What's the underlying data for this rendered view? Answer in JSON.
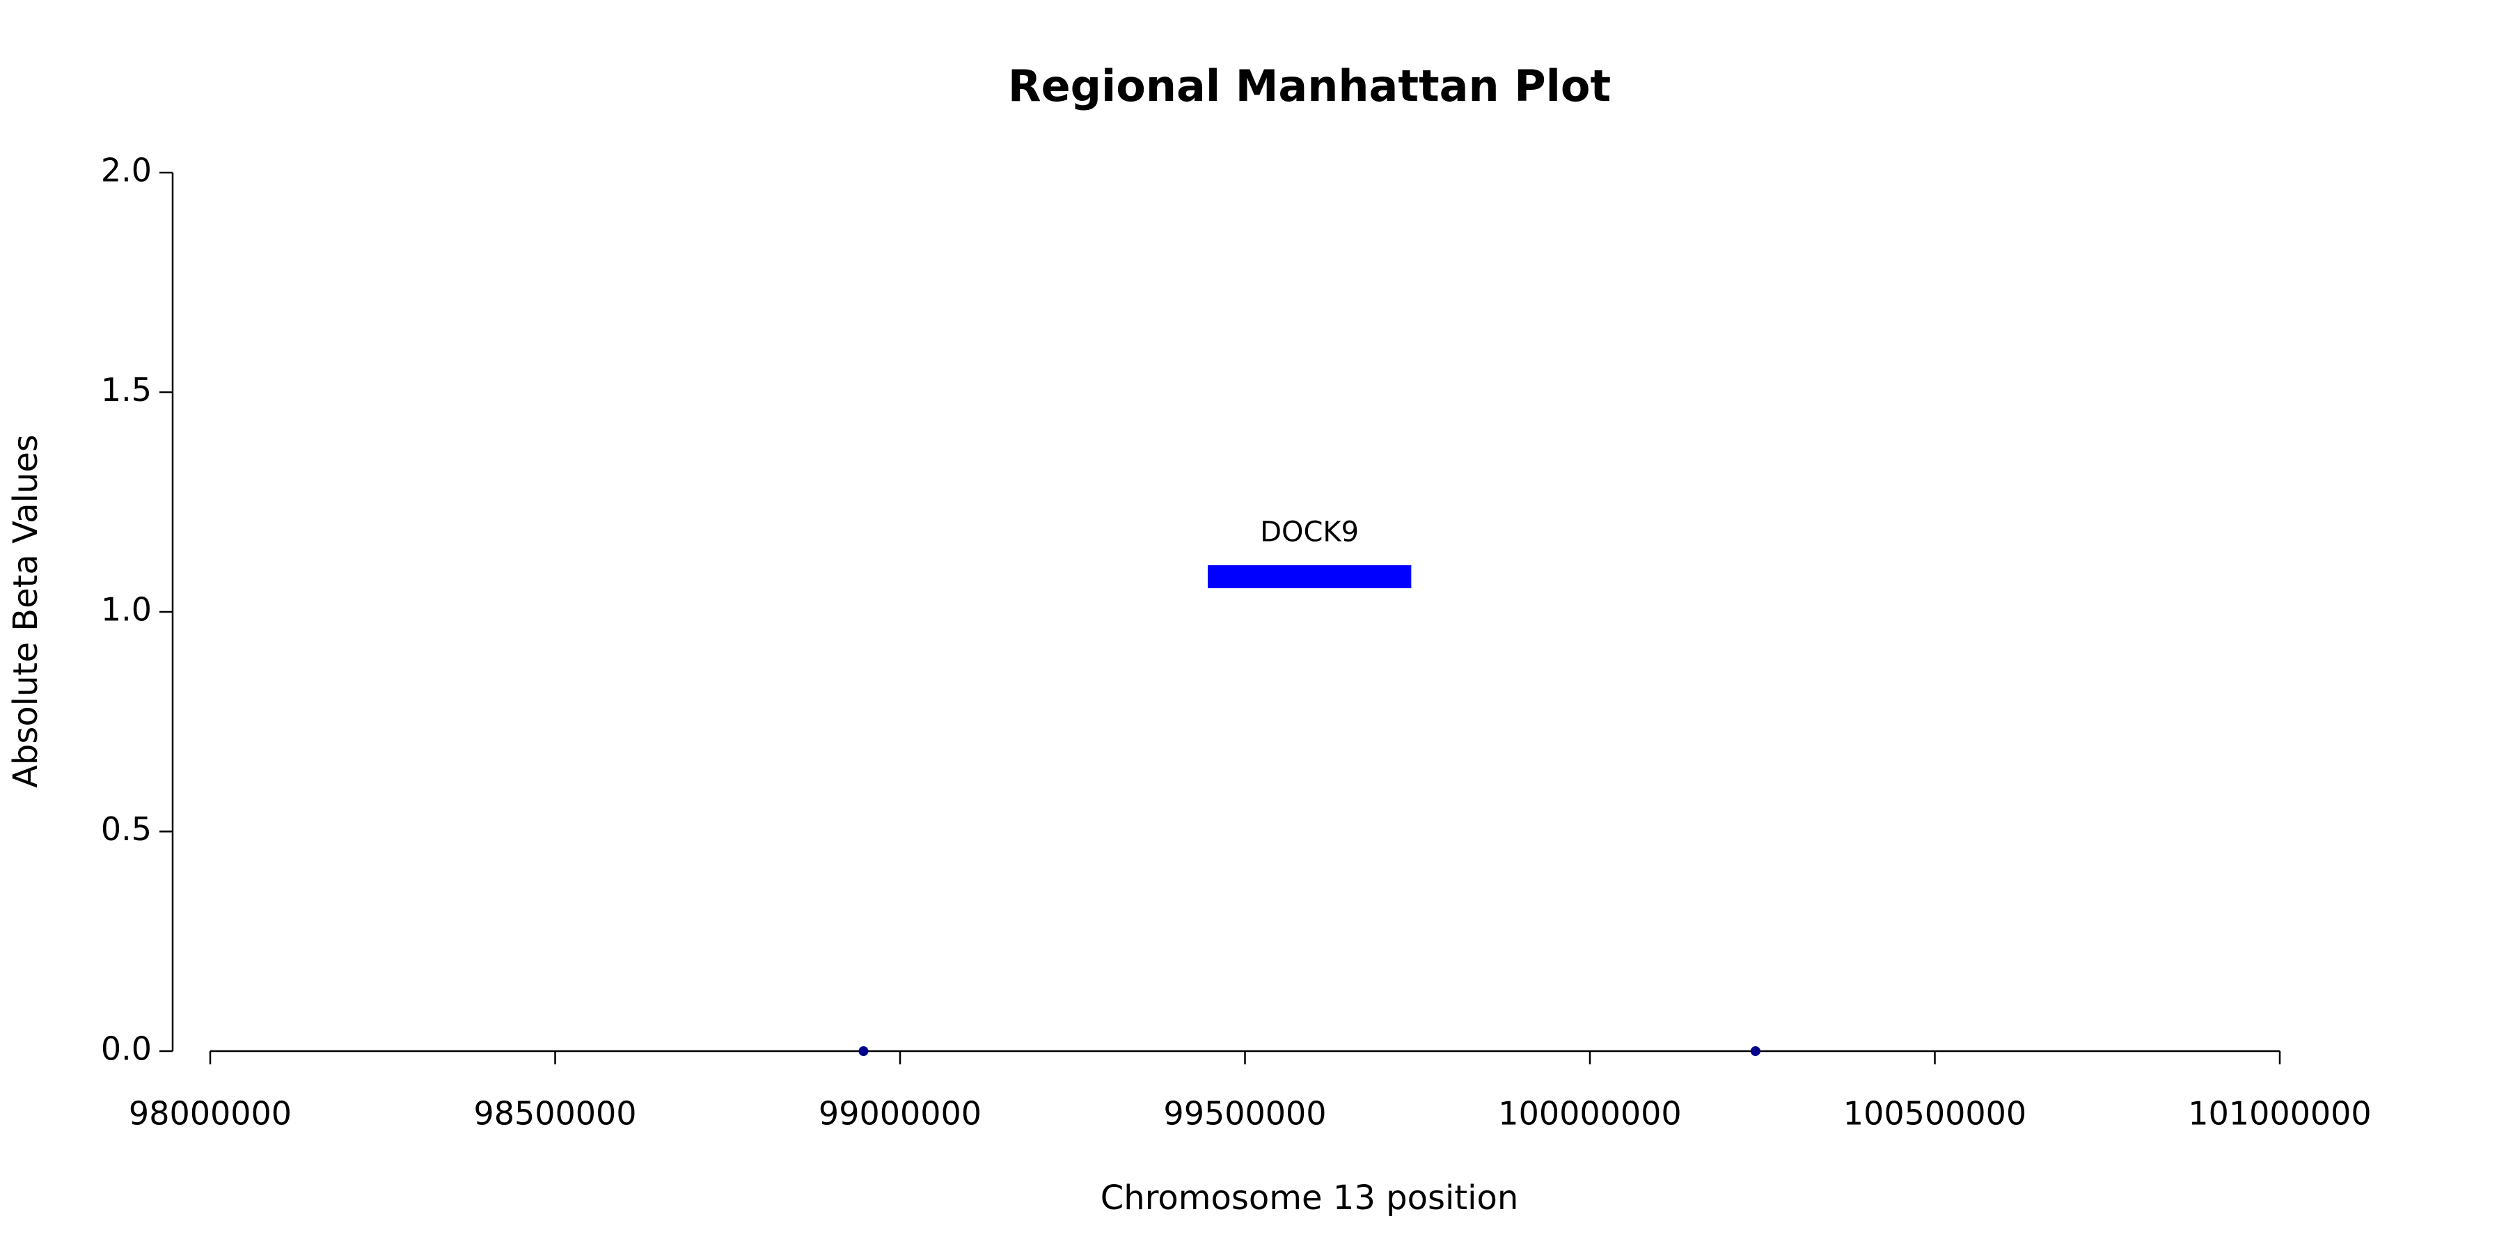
{
  "chart_data": {
    "type": "scatter",
    "title": "Regional Manhattan Plot",
    "x_label": "Chromosome 13 position",
    "y_label": "Absolute Beta Values",
    "series": [
      {
        "x": [
          98947000,
          100240000
        ],
        "values": [
          0,
          0
        ],
        "color": "#00008b"
      }
    ],
    "gene": {
      "name": "DOCK9",
      "start": 99446000,
      "end": 99741000,
      "y": 1.08,
      "color": "#0000ff"
    },
    "xlim": [
      98000000,
      101000000
    ],
    "xticks": [
      98000000,
      98500000,
      99000000,
      99500000,
      100000000,
      100500000,
      101000000
    ],
    "ylim": [
      0,
      2
    ],
    "yticks": [
      {
        "value": 0,
        "label": "0.0"
      },
      {
        "value": 0.5,
        "label": "0.5"
      },
      {
        "value": 1,
        "label": "1.0"
      },
      {
        "value": 1.5,
        "label": "1.5"
      },
      {
        "value": 2,
        "label": "2.0"
      }
    ],
    "grid": false
  }
}
